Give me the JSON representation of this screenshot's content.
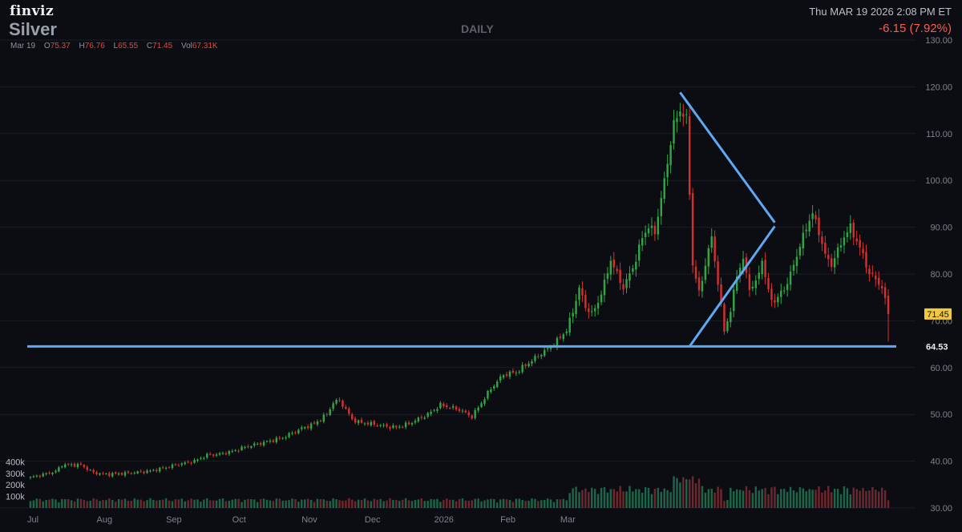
{
  "header": {
    "logo": "finviz",
    "ticker": "Silver",
    "period": "DAILY",
    "datetime": "Thu MAR 19 2026 2:08 PM ET",
    "change": "-6.15 (7.92%)"
  },
  "ohlc": {
    "date": "Mar 19",
    "open_label": "O",
    "open": "75.37",
    "high_label": "H",
    "high": "76.76",
    "low_label": "L",
    "low": "65.55",
    "close_label": "C",
    "close": "71.45",
    "vol_label": "Vol",
    "vol": "67.31K"
  },
  "colors": {
    "background": "#0b0d12",
    "up": "#2fa745",
    "down": "#d62f2f",
    "trendline": "#5fa8f2",
    "grid": "#1a1e27",
    "axis_text": "#7d838e",
    "price_tag": "#f0c940"
  },
  "chart_data": {
    "type": "candlestick",
    "title": "",
    "xlabel": "",
    "ylabel": "",
    "ylim": [
      30,
      130
    ],
    "y_ticks": [
      30,
      40,
      50,
      60,
      70,
      80,
      90,
      100,
      110,
      120,
      130
    ],
    "y_tick_labels": [
      "30.00",
      "40.00",
      "50.00",
      "60.00",
      "70.00",
      "80.00",
      "90.00",
      "100.00",
      "110.00",
      "120.00",
      "130.00"
    ],
    "x_tick_labels": [
      "Jul",
      "Aug",
      "Sep",
      "Oct",
      "Nov",
      "Dec",
      "2026",
      "Feb",
      "Mar"
    ],
    "volume_tick_labels": [
      "400k",
      "300k",
      "200k",
      "100k"
    ],
    "volume_ticks": [
      400,
      300,
      200,
      100
    ],
    "last_price": 71.45,
    "last_price_label": "71.45",
    "support_level": 64.53,
    "support_label": "64.53",
    "price_anchors": [
      [
        0,
        36.5
      ],
      [
        8,
        37.8
      ],
      [
        10,
        39.2
      ],
      [
        16,
        39.2
      ],
      [
        20,
        37.5
      ],
      [
        24,
        37.2
      ],
      [
        30,
        37.4
      ],
      [
        38,
        37.9
      ],
      [
        42,
        38.5
      ],
      [
        46,
        39.2
      ],
      [
        52,
        40.0
      ],
      [
        56,
        41.3
      ],
      [
        60,
        41.5
      ],
      [
        64,
        42.1
      ],
      [
        68,
        43.0
      ],
      [
        74,
        44.0
      ],
      [
        80,
        45.0
      ],
      [
        86,
        47.0
      ],
      [
        90,
        48.0
      ],
      [
        94,
        50.0
      ],
      [
        96,
        52.5
      ],
      [
        98,
        53.0
      ],
      [
        102,
        49.0
      ],
      [
        104,
        48.3
      ],
      [
        108,
        48.0
      ],
      [
        112,
        47.5
      ],
      [
        116,
        47.2
      ],
      [
        120,
        48.0
      ],
      [
        126,
        50.0
      ],
      [
        130,
        52.0
      ],
      [
        136,
        51.0
      ],
      [
        140,
        49.5
      ],
      [
        142,
        51.5
      ],
      [
        146,
        55.5
      ],
      [
        150,
        58.5
      ],
      [
        154,
        59.0
      ],
      [
        158,
        61.0
      ],
      [
        162,
        63.0
      ],
      [
        166,
        65.0
      ],
      [
        170,
        68.0
      ],
      [
        172,
        72.0
      ],
      [
        174,
        77.0
      ],
      [
        176,
        73.0
      ],
      [
        178,
        71.5
      ],
      [
        180,
        74.0
      ],
      [
        182,
        78.0
      ],
      [
        184,
        83.0
      ],
      [
        186,
        80.0
      ],
      [
        188,
        77.0
      ],
      [
        190,
        80.0
      ],
      [
        192,
        83.0
      ],
      [
        194,
        88.0
      ],
      [
        196,
        90.0
      ],
      [
        198,
        89.0
      ],
      [
        200,
        96.0
      ],
      [
        202,
        104.0
      ],
      [
        204,
        112.0
      ],
      [
        206,
        115.0
      ],
      [
        208,
        113.0
      ],
      [
        210,
        82.0
      ],
      [
        212,
        76.0
      ],
      [
        214,
        82.0
      ],
      [
        216,
        88.0
      ],
      [
        218,
        78.0
      ],
      [
        220,
        68.0
      ],
      [
        222,
        72.0
      ],
      [
        224,
        80.0
      ],
      [
        226,
        83.0
      ],
      [
        228,
        77.0
      ],
      [
        230,
        78.0
      ],
      [
        232,
        83.0
      ],
      [
        234,
        76.0
      ],
      [
        236,
        74.0
      ],
      [
        240,
        78.0
      ],
      [
        242,
        82.0
      ],
      [
        244,
        86.0
      ],
      [
        246,
        90.0
      ],
      [
        248,
        93.0
      ],
      [
        250,
        89.0
      ],
      [
        252,
        84.0
      ],
      [
        254,
        82.0
      ],
      [
        256,
        85.0
      ],
      [
        258,
        88.0
      ],
      [
        260,
        90.0
      ],
      [
        262,
        87.0
      ],
      [
        264,
        84.0
      ],
      [
        266,
        80.0
      ],
      [
        268,
        79.0
      ],
      [
        270,
        77.0
      ],
      [
        272,
        71.45
      ]
    ]
  },
  "annotations": {
    "upper_trendline": {
      "from": [
        206,
        118.8
      ],
      "to": [
        236,
        91.0
      ]
    },
    "lower_trendline": {
      "from": [
        209,
        64.53
      ],
      "to": [
        236,
        90.2
      ]
    }
  }
}
